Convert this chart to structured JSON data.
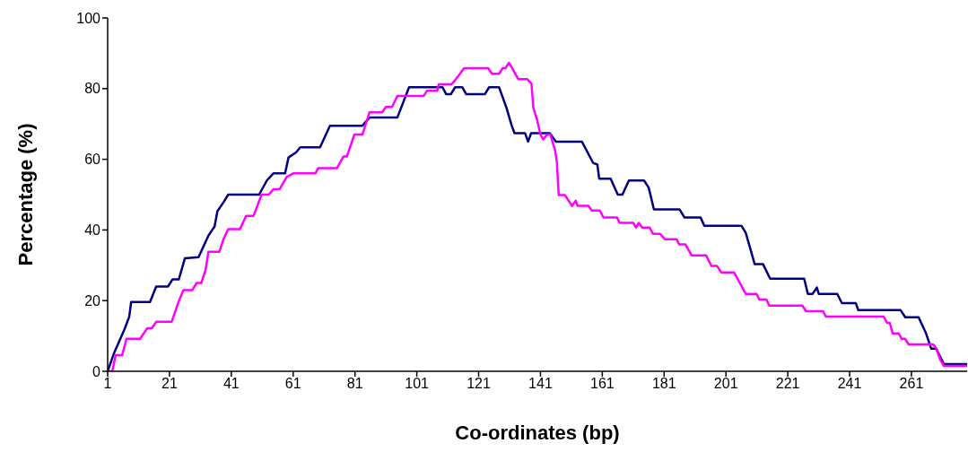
{
  "chart_data": {
    "type": "line",
    "xlabel": "Co-ordinates (bp)",
    "ylabel": "Percentage (%)",
    "xlim": [
      1,
      279
    ],
    "xticks": [
      1,
      21,
      41,
      61,
      81,
      101,
      121,
      141,
      161,
      181,
      201,
      221,
      241,
      261
    ],
    "ylim": [
      0,
      100
    ],
    "yticks": [
      0,
      20,
      40,
      60,
      80,
      100
    ],
    "grid": false,
    "legend": false,
    "marker": "none",
    "line_style": "solid",
    "series": [
      {
        "color": "#000080",
        "x": [
          1,
          3,
          6.5,
          8,
          8.6,
          14.7,
          16.7,
          20.5,
          22,
          24,
          26,
          30.4,
          33.6,
          35.6,
          36.5,
          38.6,
          40,
          50,
          52.5,
          54.6,
          58.4,
          59.5,
          62,
          63.3,
          69.7,
          72.9,
          83.4,
          85.7,
          94.7,
          98.5,
          109.3,
          110.5,
          112,
          113.4,
          115.7,
          117,
          123,
          124.4,
          127.6,
          130,
          131.7,
          132.6,
          136,
          137,
          138,
          144,
          146,
          154.4,
          158,
          159.4,
          160,
          163.7,
          166,
          167.5,
          169.6,
          174.5,
          176,
          177.7,
          186,
          187.6,
          192.8,
          194,
          206,
          207.4,
          208.9,
          210.3,
          213,
          215.3,
          226.3,
          227.5,
          229,
          230.4,
          231,
          237,
          238.5,
          243,
          243.8,
          257.5,
          259,
          263.3,
          265.6,
          267.4,
          269,
          271.5,
          279
        ],
        "values": [
          0,
          5,
          12,
          15.5,
          19.6,
          19.6,
          24,
          24,
          26,
          26,
          32,
          32.3,
          38.4,
          41,
          45.3,
          48,
          50,
          50,
          54,
          56,
          56,
          60.5,
          62,
          63.4,
          63.4,
          69.5,
          69.5,
          71.8,
          71.8,
          80.4,
          80.4,
          78.4,
          78.4,
          80.4,
          80.4,
          78.4,
          78.4,
          80.4,
          80.4,
          74.6,
          69.5,
          67.4,
          67.4,
          65,
          67.4,
          67.4,
          65,
          65,
          59,
          58.5,
          54.5,
          54.5,
          50,
          50,
          54,
          54,
          52,
          45.8,
          45.8,
          43.5,
          43.5,
          41.2,
          41.2,
          39.2,
          34.6,
          30.3,
          30.3,
          26.2,
          26.2,
          21.9,
          21.9,
          23.7,
          21.9,
          21.9,
          19.3,
          19.3,
          17.3,
          17.3,
          15.3,
          15.3,
          11,
          6.4,
          6.4,
          2,
          2
        ]
      },
      {
        "color": "#ff00ff",
        "x": [
          1,
          2.5,
          3.6,
          5.7,
          7.1,
          11.5,
          13.8,
          15.3,
          16.7,
          21.7,
          24,
          25.5,
          28.4,
          29.8,
          31.3,
          32.7,
          33.6,
          37.1,
          38.6,
          40,
          43.8,
          45.8,
          48.2,
          50.8,
          53.1,
          54.6,
          56.6,
          58.9,
          61,
          68.2,
          69.1,
          75.2,
          77.3,
          78.4,
          80.8,
          83.4,
          85.7,
          89.8,
          91,
          93,
          94.7,
          103.2,
          104.3,
          107.6,
          108.1,
          112.2,
          113.4,
          114.8,
          116.3,
          124.1,
          125.3,
          127.6,
          128.8,
          129.7,
          130.8,
          131.7,
          133.8,
          136.7,
          138.1,
          138.7,
          139.9,
          141,
          141.9,
          143.1,
          144.2,
          145.7,
          146.3,
          146.9,
          148.9,
          151.2,
          152.4,
          153,
          156.5,
          157.6,
          160.2,
          161.4,
          165.8,
          166.6,
          171,
          171.9,
          172.8,
          173.9,
          176.3,
          177.4,
          179.7,
          181.2,
          185,
          185.9,
          187.9,
          189.9,
          194.6,
          196.3,
          198.1,
          199.5,
          203.6,
          207.4,
          210.9,
          211.8,
          214.1,
          215,
          225.7,
          226.9,
          232.4,
          233.3,
          252,
          253.1,
          254,
          254.9,
          256.9,
          257.8,
          258.9,
          260.1,
          268,
          269.1,
          270.3,
          271.5,
          279
        ],
        "values": [
          0,
          0,
          4.6,
          4.6,
          9.2,
          9.2,
          12.2,
          12.2,
          14,
          14,
          19.8,
          23,
          23,
          25,
          25,
          28.8,
          33.8,
          33.8,
          37.7,
          40.2,
          40.2,
          44,
          44,
          50,
          50,
          51.5,
          51.5,
          55,
          56,
          56,
          57.5,
          57.5,
          60.8,
          60.8,
          67,
          67,
          73.3,
          73.3,
          74.8,
          74.8,
          77.9,
          77.9,
          79.4,
          79.4,
          81.2,
          81.2,
          82.4,
          84,
          85.8,
          85.8,
          84.2,
          84.2,
          85.8,
          85.8,
          87.3,
          86,
          82.7,
          82.7,
          81.4,
          74.5,
          71.2,
          67,
          65.6,
          67,
          67,
          62.6,
          59.3,
          49.9,
          49.9,
          46.8,
          48.3,
          46.8,
          46.8,
          45.5,
          45.5,
          43.5,
          43.5,
          42,
          42,
          40.7,
          42,
          40.7,
          40.7,
          38.9,
          38.9,
          37.4,
          37.4,
          35.9,
          35.9,
          32.8,
          32.8,
          29.8,
          29.8,
          28,
          28,
          21.9,
          21.9,
          20.3,
          20.3,
          18.6,
          18.6,
          17,
          17,
          15.5,
          15.5,
          13.7,
          13.7,
          10.7,
          10.7,
          9.2,
          9.2,
          7.6,
          7.6,
          6.4,
          3.3,
          1.5,
          1.5
        ]
      }
    ]
  }
}
